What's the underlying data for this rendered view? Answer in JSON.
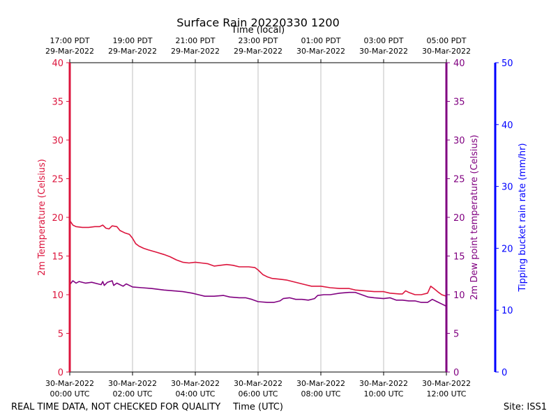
{
  "chart_data": {
    "type": "line",
    "title": "Surface Rain 20220330 1200",
    "footer_left": "REAL TIME DATA, NOT CHECKED FOR QUALITY",
    "footer_right": "Site: ISS1",
    "x_bottom_label": "Time (UTC)",
    "x_top_label": "Time (local)",
    "x_range_hours_utc": [
      0,
      12
    ],
    "x_ticks_bottom": [
      {
        "hour": 0,
        "line1": "30-Mar-2022",
        "line2": "00:00 UTC"
      },
      {
        "hour": 2,
        "line1": "30-Mar-2022",
        "line2": "02:00 UTC"
      },
      {
        "hour": 4,
        "line1": "30-Mar-2022",
        "line2": "04:00 UTC"
      },
      {
        "hour": 6,
        "line1": "30-Mar-2022",
        "line2": "06:00 UTC"
      },
      {
        "hour": 8,
        "line1": "30-Mar-2022",
        "line2": "08:00 UTC"
      },
      {
        "hour": 10,
        "line1": "30-Mar-2022",
        "line2": "10:00 UTC"
      },
      {
        "hour": 12,
        "line1": "30-Mar-2022",
        "line2": "12:00 UTC"
      }
    ],
    "x_ticks_top": [
      {
        "hour": 0,
        "line1": "17:00 PDT",
        "line2": "29-Mar-2022"
      },
      {
        "hour": 2,
        "line1": "19:00 PDT",
        "line2": "29-Mar-2022"
      },
      {
        "hour": 4,
        "line1": "21:00 PDT",
        "line2": "29-Mar-2022"
      },
      {
        "hour": 6,
        "line1": "23:00 PDT",
        "line2": "29-Mar-2022"
      },
      {
        "hour": 8,
        "line1": "01:00 PDT",
        "line2": "30-Mar-2022"
      },
      {
        "hour": 10,
        "line1": "03:00 PDT",
        "line2": "30-Mar-2022"
      },
      {
        "hour": 12,
        "line1": "05:00 PDT",
        "line2": "30-Mar-2022"
      }
    ],
    "y_left": {
      "label": "2m Temperature (Celsius)",
      "range": [
        0,
        40
      ],
      "ticks": [
        0,
        5,
        10,
        15,
        20,
        25,
        30,
        35,
        40
      ],
      "color": "#dc143c"
    },
    "y_right1": {
      "label": "2m Dew point temperature (Celsius)",
      "range": [
        0,
        40
      ],
      "ticks": [
        0,
        5,
        10,
        15,
        20,
        25,
        30,
        35,
        40
      ],
      "color": "#800080"
    },
    "y_right2": {
      "label": "Tipping bucket rain rate (mm/hr)",
      "range": [
        0,
        50
      ],
      "ticks": [
        0,
        10,
        20,
        30,
        40,
        50
      ],
      "color": "#0000ff"
    },
    "grid_vertical": true,
    "series": [
      {
        "key": "temperature",
        "color": "#dc143c",
        "axis": "left",
        "points": [
          [
            0,
            19.6
          ],
          [
            0.1,
            19.0
          ],
          [
            0.2,
            18.8
          ],
          [
            0.4,
            18.7
          ],
          [
            0.6,
            18.7
          ],
          [
            0.8,
            18.8
          ],
          [
            0.95,
            18.8
          ],
          [
            1.05,
            19.0
          ],
          [
            1.15,
            18.6
          ],
          [
            1.25,
            18.5
          ],
          [
            1.35,
            18.9
          ],
          [
            1.5,
            18.8
          ],
          [
            1.6,
            18.3
          ],
          [
            1.75,
            18.0
          ],
          [
            1.9,
            17.8
          ],
          [
            2.0,
            17.3
          ],
          [
            2.1,
            16.6
          ],
          [
            2.2,
            16.3
          ],
          [
            2.35,
            16.0
          ],
          [
            2.5,
            15.8
          ],
          [
            2.75,
            15.5
          ],
          [
            3.0,
            15.2
          ],
          [
            3.2,
            14.9
          ],
          [
            3.4,
            14.5
          ],
          [
            3.6,
            14.2
          ],
          [
            3.8,
            14.1
          ],
          [
            4.0,
            14.2
          ],
          [
            4.2,
            14.1
          ],
          [
            4.4,
            14.0
          ],
          [
            4.6,
            13.7
          ],
          [
            4.8,
            13.8
          ],
          [
            5.0,
            13.9
          ],
          [
            5.2,
            13.8
          ],
          [
            5.4,
            13.6
          ],
          [
            5.7,
            13.6
          ],
          [
            5.9,
            13.5
          ],
          [
            6.0,
            13.2
          ],
          [
            6.15,
            12.6
          ],
          [
            6.3,
            12.3
          ],
          [
            6.45,
            12.1
          ],
          [
            6.7,
            12.0
          ],
          [
            6.9,
            11.9
          ],
          [
            7.1,
            11.7
          ],
          [
            7.3,
            11.5
          ],
          [
            7.5,
            11.3
          ],
          [
            7.7,
            11.1
          ],
          [
            8.0,
            11.1
          ],
          [
            8.3,
            10.9
          ],
          [
            8.6,
            10.8
          ],
          [
            8.9,
            10.8
          ],
          [
            9.1,
            10.6
          ],
          [
            9.4,
            10.5
          ],
          [
            9.7,
            10.4
          ],
          [
            10.0,
            10.4
          ],
          [
            10.2,
            10.2
          ],
          [
            10.5,
            10.1
          ],
          [
            10.6,
            10.1
          ],
          [
            10.7,
            10.5
          ],
          [
            10.8,
            10.3
          ],
          [
            11.0,
            10.0
          ],
          [
            11.2,
            10.0
          ],
          [
            11.4,
            10.2
          ],
          [
            11.5,
            11.1
          ],
          [
            11.6,
            10.8
          ],
          [
            11.75,
            10.3
          ],
          [
            11.85,
            10.0
          ],
          [
            12.0,
            9.8
          ]
        ]
      },
      {
        "key": "dewpoint",
        "color": "#800080",
        "axis": "right1",
        "points": [
          [
            0,
            11.3
          ],
          [
            0.1,
            11.8
          ],
          [
            0.2,
            11.5
          ],
          [
            0.3,
            11.7
          ],
          [
            0.5,
            11.5
          ],
          [
            0.7,
            11.6
          ],
          [
            0.9,
            11.4
          ],
          [
            1.0,
            11.3
          ],
          [
            1.05,
            11.7
          ],
          [
            1.1,
            11.2
          ],
          [
            1.2,
            11.6
          ],
          [
            1.35,
            11.8
          ],
          [
            1.4,
            11.2
          ],
          [
            1.5,
            11.5
          ],
          [
            1.6,
            11.3
          ],
          [
            1.7,
            11.1
          ],
          [
            1.8,
            11.4
          ],
          [
            1.9,
            11.2
          ],
          [
            2.0,
            11.0
          ],
          [
            2.3,
            10.9
          ],
          [
            2.6,
            10.8
          ],
          [
            3.0,
            10.6
          ],
          [
            3.3,
            10.5
          ],
          [
            3.6,
            10.4
          ],
          [
            3.9,
            10.2
          ],
          [
            4.1,
            10.0
          ],
          [
            4.3,
            9.8
          ],
          [
            4.6,
            9.8
          ],
          [
            4.9,
            9.9
          ],
          [
            5.1,
            9.7
          ],
          [
            5.4,
            9.6
          ],
          [
            5.6,
            9.6
          ],
          [
            5.8,
            9.4
          ],
          [
            6.0,
            9.1
          ],
          [
            6.3,
            9.0
          ],
          [
            6.5,
            9.0
          ],
          [
            6.7,
            9.2
          ],
          [
            6.8,
            9.5
          ],
          [
            7.0,
            9.6
          ],
          [
            7.2,
            9.4
          ],
          [
            7.4,
            9.4
          ],
          [
            7.6,
            9.3
          ],
          [
            7.8,
            9.5
          ],
          [
            7.9,
            9.9
          ],
          [
            8.1,
            10.0
          ],
          [
            8.3,
            10.0
          ],
          [
            8.6,
            10.2
          ],
          [
            8.9,
            10.3
          ],
          [
            9.1,
            10.3
          ],
          [
            9.3,
            10.0
          ],
          [
            9.5,
            9.7
          ],
          [
            9.7,
            9.6
          ],
          [
            10.0,
            9.5
          ],
          [
            10.2,
            9.6
          ],
          [
            10.4,
            9.3
          ],
          [
            10.6,
            9.3
          ],
          [
            10.8,
            9.2
          ],
          [
            11.0,
            9.2
          ],
          [
            11.2,
            9.0
          ],
          [
            11.4,
            9.0
          ],
          [
            11.55,
            9.4
          ],
          [
            11.7,
            9.1
          ],
          [
            11.85,
            8.8
          ],
          [
            12.0,
            8.5
          ]
        ]
      }
    ]
  }
}
